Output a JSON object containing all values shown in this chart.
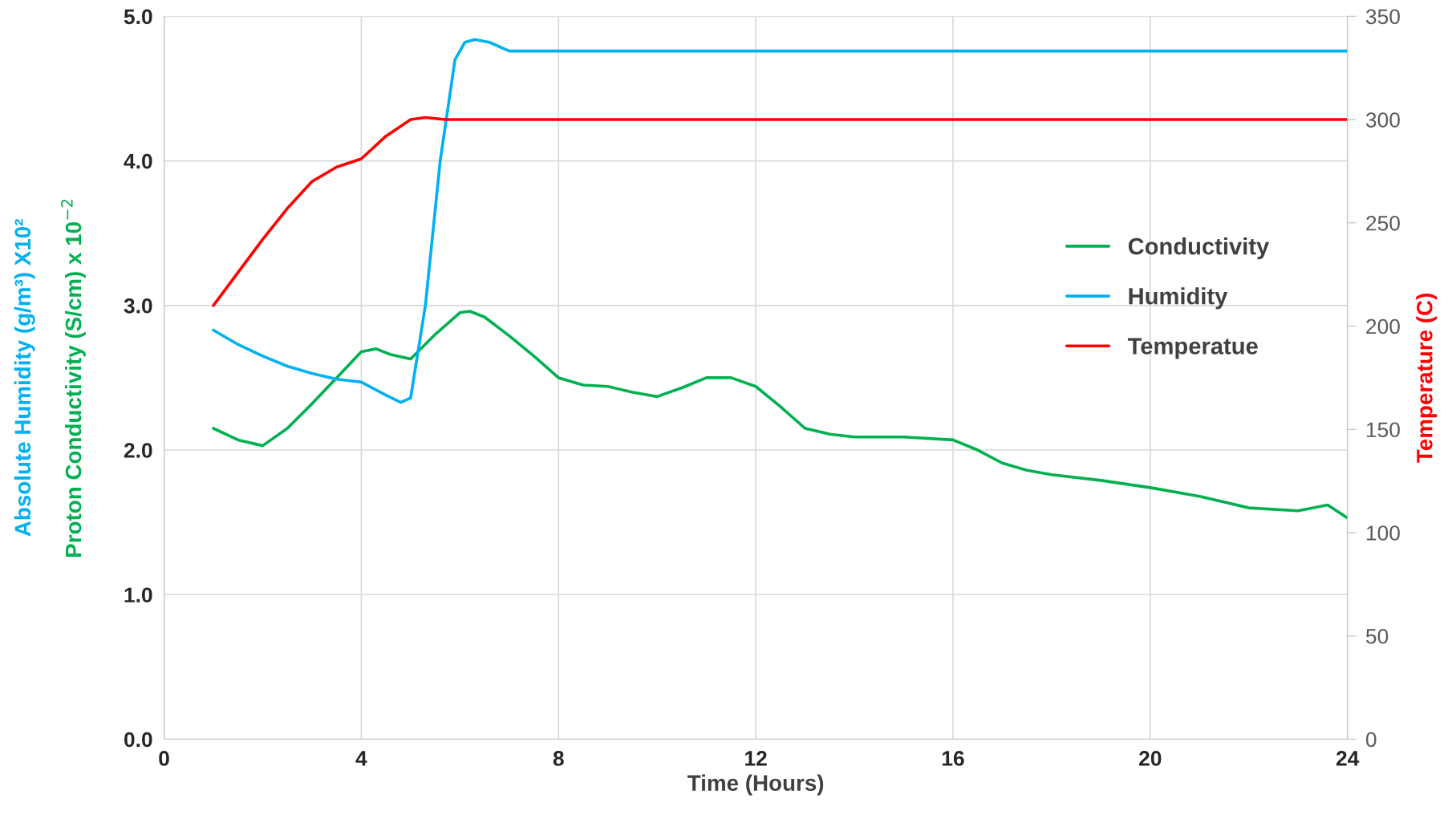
{
  "chart_data": {
    "type": "line",
    "xlabel": "Time (Hours)",
    "ylabel": "Proton Conductivity (S/cm) x 10$^{−2}$",
    "y2label": "Temperature (C)",
    "annotations": [
      "Absolute Humidity (g/m³) X10²"
    ],
    "xlim": [
      0,
      24
    ],
    "xticks": [
      0,
      4,
      8,
      12,
      16,
      20,
      24
    ],
    "ylim": [
      0,
      5
    ],
    "yticks": [
      {
        "value": 0,
        "label": "0.0"
      },
      {
        "value": 1,
        "label": "1.0"
      },
      {
        "value": 2,
        "label": "2.0"
      },
      {
        "value": 3,
        "label": "3.0"
      },
      {
        "value": 4,
        "label": "4.0"
      },
      {
        "value": 5,
        "label": "5.0"
      }
    ],
    "y2lim": [
      0,
      350
    ],
    "y2ticks": [
      0,
      50,
      100,
      150,
      200,
      250,
      300,
      350
    ],
    "grid": true,
    "legend": "right",
    "series": [
      {
        "name": "Conductivity",
        "color": "#00b050",
        "x": [
          1,
          1.5,
          2,
          2.5,
          3,
          3.5,
          4,
          4.3,
          4.6,
          5,
          5.5,
          6,
          6.2,
          6.5,
          7,
          7.5,
          8,
          8.5,
          9,
          9.5,
          10,
          10.5,
          11,
          11.5,
          12,
          12.5,
          13,
          13.5,
          14,
          15,
          16,
          16.5,
          17,
          17.5,
          18,
          19,
          20,
          21,
          22,
          23,
          23.6,
          24
        ],
        "values": [
          2.15,
          2.07,
          2.03,
          2.15,
          2.32,
          2.5,
          2.68,
          2.7,
          2.66,
          2.63,
          2.8,
          2.95,
          2.96,
          2.92,
          2.79,
          2.65,
          2.5,
          2.45,
          2.44,
          2.4,
          2.37,
          2.43,
          2.5,
          2.5,
          2.44,
          2.3,
          2.15,
          2.11,
          2.09,
          2.09,
          2.07,
          2.0,
          1.91,
          1.86,
          1.83,
          1.79,
          1.74,
          1.68,
          1.6,
          1.58,
          1.62,
          1.53
        ]
      },
      {
        "name": "Humidity",
        "color": "#00b0f0",
        "x": [
          1,
          1.5,
          2,
          2.5,
          3,
          3.5,
          4,
          4.5,
          4.8,
          5,
          5.3,
          5.6,
          5.9,
          6.1,
          6.3,
          6.6,
          7,
          24
        ],
        "values": [
          2.83,
          2.73,
          2.65,
          2.58,
          2.53,
          2.49,
          2.47,
          2.38,
          2.33,
          2.36,
          3.0,
          4.0,
          4.7,
          4.82,
          4.84,
          4.82,
          4.76,
          4.76
        ]
      },
      {
        "name": "Temperatue",
        "color": "#ff0000",
        "axis": "y2",
        "x": [
          1,
          1.5,
          2,
          2.5,
          3,
          3.5,
          4,
          4.5,
          5,
          5.3,
          5.7,
          6,
          24
        ],
        "values": [
          210,
          226,
          242,
          257,
          270,
          277,
          281,
          292,
          300,
          301,
          300,
          300,
          300
        ]
      }
    ]
  }
}
